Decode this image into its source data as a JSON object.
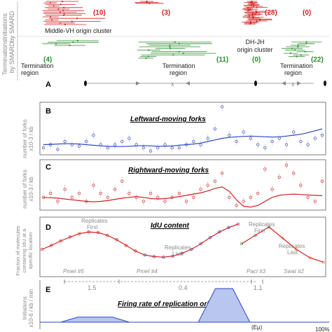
{
  "rows": {
    "initiations_label": [
      "Initiations",
      "by SMARD"
    ],
    "terminations_label": [
      "Terminations",
      "by SMARD"
    ]
  },
  "smard_counts": {
    "initiations": [
      "(10)",
      "(3)",
      "(28)",
      "(0)"
    ],
    "terminations": [
      "(4)",
      "(11)",
      "(0)",
      "(22)"
    ]
  },
  "smard_labels": {
    "middle_vh": "Middle-VH origin cluster",
    "dh_jh": [
      "DH-JH",
      "origin cluster"
    ],
    "termination_region": "Termination region"
  },
  "panels": {
    "A": "A",
    "B": {
      "letter": "B",
      "title": "Leftward-moving forks",
      "ylabel": [
        "number of forks",
        "x10-3 / kb"
      ]
    },
    "C": {
      "letter": "C",
      "title": "Rightward-moving forks",
      "ylabel": [
        "number of forks",
        "x10-3 / kb"
      ]
    },
    "D": {
      "letter": "D",
      "title": "IdU content",
      "ylabel": [
        "Fraction of molecules",
        "containing IdU at a",
        "specific location"
      ],
      "annotations": [
        "Replicates First",
        "Replicates Last",
        "Replicates First",
        "Replicates Last"
      ],
      "sites": [
        "PmeI #5",
        "PmeI #4",
        "PacI #3",
        "SwaI #2"
      ]
    },
    "E": {
      "letter": "E",
      "title": "Firing rate of replication origins",
      "ylabel": [
        "Initiations",
        "x10-6 / kb / min"
      ],
      "segments": [
        "1.5",
        "0.4",
        "1.1"
      ],
      "eu": "(Eμ)",
      "pct": "100%"
    }
  },
  "colors": {
    "red": "#d42020",
    "green": "#2e8b2e",
    "blue": "#2a45c8",
    "gray": "#8a8a8a"
  },
  "chart_data": [
    {
      "type": "scatter",
      "panel": "B",
      "series": [
        {
          "values": [
            2,
            3,
            1.5,
            4,
            3,
            2.5,
            4,
            6,
            3,
            2,
            3,
            4,
            5,
            3,
            2,
            1,
            2,
            3,
            2,
            2,
            3,
            4,
            3,
            5,
            8,
            15,
            6,
            4,
            7,
            5,
            3,
            2,
            4,
            5,
            3,
            7,
            4,
            3,
            5,
            6
          ]
        },
        {
          "values": [
            3,
            3.1,
            3.2,
            3.3,
            3.3,
            3.2,
            3.0,
            2.8,
            2.6,
            2.5,
            2.4,
            2.4,
            2.5,
            2.6,
            2.7,
            2.6,
            2.5,
            2.5,
            2.6,
            2.8,
            3.0,
            3.2,
            3.5,
            4.0,
            4.5,
            5.0,
            5.3,
            5.5,
            5.6,
            5.7,
            5.6,
            5.5,
            5.4,
            5.5,
            5.7,
            6.0,
            6.3,
            6.8,
            7.4,
            8.0
          ]
        }
      ]
    },
    {
      "type": "scatter",
      "panel": "C",
      "series": [
        {
          "values": [
            3,
            4,
            2,
            5,
            3,
            4,
            2,
            6,
            4,
            3,
            5,
            7,
            4,
            3,
            2,
            4,
            3,
            2,
            3,
            4,
            2,
            3,
            5,
            6,
            7,
            9,
            3,
            1,
            2,
            3,
            4,
            10,
            5,
            8,
            11,
            9,
            6,
            3,
            2,
            7
          ]
        },
        {
          "values": [
            3.0,
            2.9,
            2.8,
            2.6,
            2.4,
            2.2,
            2.0,
            1.9,
            2.0,
            2.2,
            2.5,
            2.8,
            3.0,
            3.2,
            3.0,
            2.7,
            2.6,
            2.7,
            2.9,
            3.2,
            3.5,
            3.8,
            4.1,
            4.6,
            5.2,
            5.6,
            4.5,
            2.4,
            0.8,
            0.6,
            1.0,
            2.0,
            3.0,
            3.5,
            3.7,
            3.8,
            3.7,
            3.6,
            3.5,
            3.4
          ]
        }
      ]
    },
    {
      "type": "line",
      "panel": "D",
      "series": [
        {
          "values": [
            0.45,
            0.52,
            0.6,
            0.67,
            0.73,
            0.76,
            0.75,
            0.7,
            0.62,
            0.52,
            0.42,
            0.35,
            0.32,
            0.31,
            0.33,
            0.38,
            0.45,
            0.55,
            0.66,
            0.76,
            0.84,
            0.9
          ]
        },
        {
          "values": [
            0.55,
            0.7,
            0.85,
            0.65,
            0.45,
            0.3,
            0.22
          ]
        }
      ]
    },
    {
      "type": "area",
      "panel": "E",
      "values": [
        0,
        0,
        0.15,
        0.15,
        0.15,
        0,
        0,
        0,
        0,
        0,
        1.0,
        1.0,
        0,
        0,
        0,
        0,
        0
      ]
    }
  ]
}
